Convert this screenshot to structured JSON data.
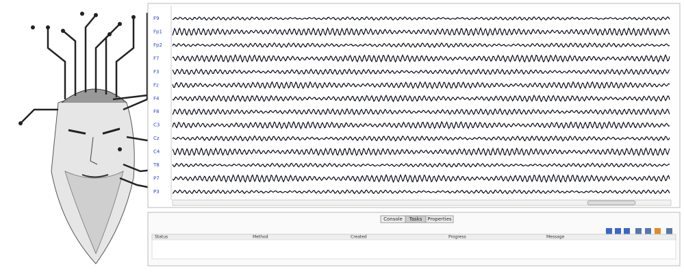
{
  "channels": [
    "F9",
    "Fp1",
    "Fp2",
    "F7",
    "F3",
    "Fz",
    "F4",
    "F8",
    "C3",
    "Cz",
    "C4",
    "T8",
    "P7",
    "P3"
  ],
  "tabs": [
    "Console",
    "Tasks",
    "Properties"
  ],
  "table": {
    "columns": [
      "Status",
      "Method",
      "Created",
      "Progress",
      "Message"
    ]
  }
}
